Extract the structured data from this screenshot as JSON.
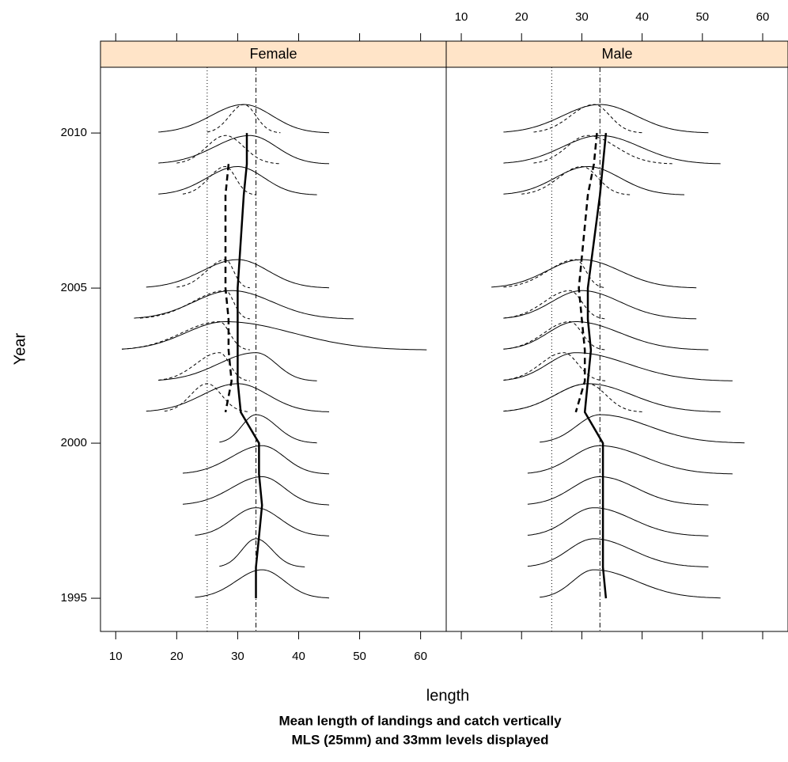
{
  "chart_data": {
    "type": "ridgeline",
    "title": [
      "Mean length of landings and catch vertically",
      "MLS (25mm) and 33mm levels displayed"
    ],
    "xlabel": "length",
    "ylabel": "Year",
    "xlim": [
      7.5,
      64.2
    ],
    "xticks": [
      10,
      20,
      30,
      40,
      50,
      60
    ],
    "ylim": [
      1993.93,
      2012.12
    ],
    "yticks": [
      1995,
      2000,
      2005,
      2010
    ],
    "reference_lines": [
      25,
      33
    ],
    "panels": [
      {
        "name": "Female",
        "years": [
          2010,
          2009,
          2008,
          2005,
          2004,
          2003,
          2002,
          2001,
          2000,
          1999,
          1998,
          1997,
          1996,
          1995
        ],
        "solid_min": [
          17,
          17,
          17,
          15,
          13,
          11,
          17,
          15,
          27,
          21,
          21,
          23,
          27,
          23
        ],
        "solid_mode": [
          31,
          32,
          30,
          30,
          29,
          28,
          33,
          30,
          33,
          34,
          34,
          33,
          33,
          34
        ],
        "solid_max": [
          45,
          45,
          43,
          45,
          49,
          61,
          43,
          45,
          43,
          45,
          45,
          45,
          41,
          45
        ],
        "dashed_min": [
          25,
          20,
          21,
          20,
          14,
          11,
          17,
          18,
          null,
          null,
          null,
          null,
          null,
          null
        ],
        "dashed_mode": [
          31,
          28,
          28,
          28,
          28,
          27,
          27,
          25,
          null,
          null,
          null,
          null,
          null,
          null
        ],
        "dashed_max": [
          37,
          37,
          33,
          32,
          32,
          32,
          32,
          32,
          null,
          null,
          null,
          null,
          null,
          null
        ],
        "mean_solid": [
          31.5,
          31.5,
          31,
          30,
          30,
          30,
          30,
          30.5,
          33.5,
          33.5,
          34,
          33.5,
          33,
          33
        ],
        "mean_dashed": [
          null,
          28.5,
          28,
          28,
          28.5,
          28.5,
          29,
          28,
          null,
          null,
          null,
          null,
          null,
          null
        ]
      },
      {
        "name": "Male",
        "years": [
          2010,
          2009,
          2008,
          2005,
          2004,
          2003,
          2002,
          2001,
          2000,
          1999,
          1998,
          1997,
          1996,
          1995
        ],
        "solid_min": [
          17,
          17,
          17,
          15,
          17,
          17,
          17,
          17,
          23,
          21,
          21,
          21,
          21,
          23
        ],
        "solid_mode": [
          33,
          33,
          31,
          30,
          30,
          29,
          29,
          31,
          33,
          33,
          33,
          32,
          32,
          32
        ],
        "solid_max": [
          51,
          53,
          47,
          49,
          49,
          51,
          55,
          53,
          57,
          55,
          51,
          51,
          51,
          53
        ],
        "dashed_min": [
          22,
          22,
          20,
          17,
          17,
          17,
          17,
          17,
          null,
          null,
          null,
          null,
          null,
          null
        ],
        "dashed_mode": [
          32,
          31,
          30,
          29,
          28,
          28,
          27,
          31,
          null,
          null,
          null,
          null,
          null,
          null
        ],
        "dashed_max": [
          40,
          45,
          38,
          34,
          34,
          34,
          34,
          40,
          null,
          null,
          null,
          null,
          null,
          null
        ],
        "mean_solid": [
          34,
          33.5,
          33,
          31,
          31,
          31.5,
          31,
          30.5,
          33.5,
          33.5,
          33.5,
          33.5,
          33.5,
          34
        ],
        "mean_dashed": [
          32.5,
          32,
          31,
          29.5,
          30,
          30.5,
          30.5,
          29,
          null,
          null,
          null,
          null,
          null,
          null
        ]
      }
    ]
  }
}
